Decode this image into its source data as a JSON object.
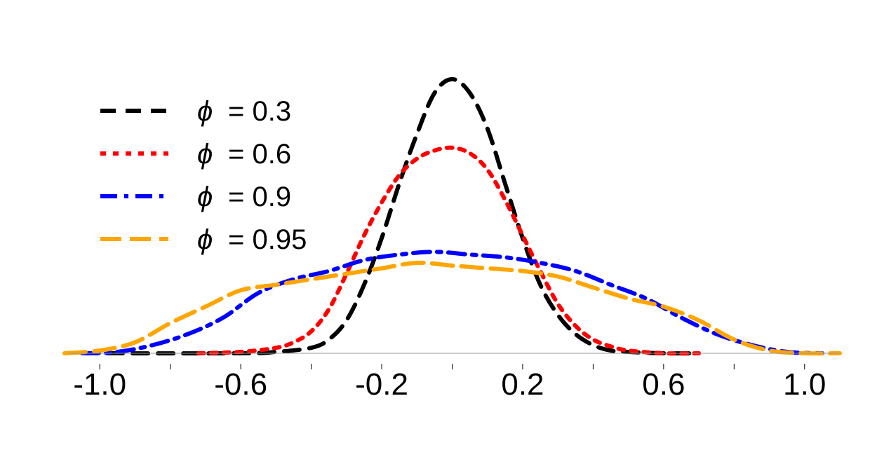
{
  "chart_data": {
    "type": "line",
    "title": "",
    "xlabel": "",
    "ylabel": "",
    "xlim": [
      -1.1,
      1.1
    ],
    "ylim": [
      0,
      1.0
    ],
    "grid": false,
    "legend_position": "top-left",
    "x_ticks": [
      {
        "value": -1.0,
        "label": "-1.0"
      },
      {
        "value": -0.6,
        "label": "-0.6"
      },
      {
        "value": -0.2,
        "label": "-0.2"
      },
      {
        "value": 0.2,
        "label": "0.2"
      },
      {
        "value": 0.6,
        "label": "0.6"
      },
      {
        "value": 1.0,
        "label": "1.0"
      }
    ],
    "minor_ticks": [
      -1.0,
      -0.8,
      -0.6,
      -0.4,
      -0.2,
      0.0,
      0.2,
      0.4,
      0.6,
      0.8,
      1.0
    ],
    "series": [
      {
        "name": "ϕ = 0.3",
        "symbol": "ϕ",
        "value_text": "= 0.3",
        "color": "#000000",
        "dash": "22,14",
        "x": [
          -1.05,
          -0.6,
          -0.5,
          -0.4,
          -0.35,
          -0.3,
          -0.25,
          -0.2,
          -0.15,
          -0.1,
          -0.05,
          0.0,
          0.05,
          0.1,
          0.15,
          0.2,
          0.25,
          0.3,
          0.35,
          0.4,
          0.45,
          0.5,
          0.6,
          0.7
        ],
        "y": [
          0.0,
          0.0,
          0.005,
          0.02,
          0.05,
          0.12,
          0.25,
          0.42,
          0.62,
          0.8,
          0.95,
          1.0,
          0.95,
          0.82,
          0.62,
          0.42,
          0.25,
          0.14,
          0.07,
          0.03,
          0.01,
          0.005,
          0.0,
          0.0
        ]
      },
      {
        "name": "ϕ = 0.6",
        "symbol": "ϕ",
        "value_text": "= 0.6",
        "color": "#ff0000",
        "dash": "8,10",
        "x": [
          -0.72,
          -0.6,
          -0.5,
          -0.45,
          -0.4,
          -0.35,
          -0.3,
          -0.25,
          -0.2,
          -0.15,
          -0.1,
          -0.05,
          0.0,
          0.05,
          0.1,
          0.15,
          0.2,
          0.25,
          0.3,
          0.35,
          0.4,
          0.45,
          0.5,
          0.6,
          0.7
        ],
        "y": [
          0.0,
          0.005,
          0.02,
          0.04,
          0.08,
          0.16,
          0.29,
          0.43,
          0.55,
          0.65,
          0.71,
          0.74,
          0.75,
          0.73,
          0.67,
          0.56,
          0.43,
          0.3,
          0.18,
          0.1,
          0.05,
          0.025,
          0.01,
          0.0,
          0.0
        ]
      },
      {
        "name": "ϕ = 0.9",
        "symbol": "ϕ",
        "value_text": "= 0.9",
        "color": "#0000ff",
        "dash": "24,10,6,10",
        "x": [
          -1.05,
          -0.95,
          -0.85,
          -0.75,
          -0.65,
          -0.55,
          -0.45,
          -0.35,
          -0.25,
          -0.15,
          -0.05,
          0.05,
          0.15,
          0.25,
          0.35,
          0.45,
          0.55,
          0.65,
          0.75,
          0.85,
          0.95,
          1.05
        ],
        "y": [
          0.0,
          0.005,
          0.03,
          0.07,
          0.13,
          0.22,
          0.27,
          0.3,
          0.34,
          0.36,
          0.37,
          0.36,
          0.35,
          0.33,
          0.3,
          0.25,
          0.2,
          0.13,
          0.07,
          0.03,
          0.005,
          0.0
        ]
      },
      {
        "name": "ϕ = 0.95",
        "symbol": "ϕ",
        "value_text": "= 0.95",
        "color": "#ffa500",
        "dash": "30,12",
        "x": [
          -1.1,
          -1.0,
          -0.9,
          -0.8,
          -0.7,
          -0.6,
          -0.5,
          -0.4,
          -0.3,
          -0.2,
          -0.1,
          0.0,
          0.1,
          0.2,
          0.3,
          0.4,
          0.5,
          0.6,
          0.7,
          0.8,
          0.9,
          1.0,
          1.1
        ],
        "y": [
          0.0,
          0.01,
          0.04,
          0.11,
          0.17,
          0.23,
          0.25,
          0.27,
          0.29,
          0.31,
          0.33,
          0.32,
          0.31,
          0.3,
          0.28,
          0.24,
          0.2,
          0.17,
          0.12,
          0.05,
          0.01,
          0.0,
          0.0
        ]
      }
    ]
  }
}
